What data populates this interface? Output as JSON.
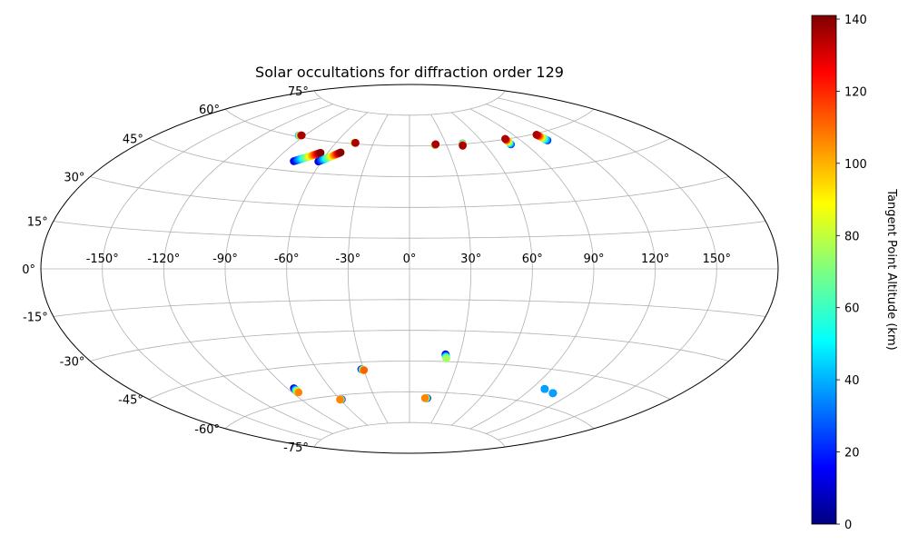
{
  "chart_data": {
    "type": "scatter",
    "projection": "aitoff",
    "title": "Solar occultations for diffraction order 129",
    "xlabel": "",
    "ylabel": "",
    "lon_ticks": [
      -150,
      -120,
      -90,
      -60,
      -30,
      0,
      30,
      60,
      90,
      120,
      150
    ],
    "lon_tick_labels": [
      "-150°",
      "-120°",
      "-90°",
      "-60°",
      "-30°",
      "0°",
      "30°",
      "60°",
      "90°",
      "120°",
      "150°"
    ],
    "lat_ticks": [
      75,
      60,
      45,
      30,
      15,
      0,
      -15,
      -30,
      -45,
      -60,
      -75
    ],
    "lat_tick_labels": [
      "75°",
      "60°",
      "45°",
      "30°",
      "15°",
      "0°",
      "-15°",
      "-30°",
      "-45°",
      "-60°",
      "-75°"
    ],
    "grid": true,
    "colorbar": {
      "label": "Tangent Point Altitude (km)",
      "colormap": "jet",
      "range": [
        0,
        141
      ],
      "ticks": [
        0,
        20,
        40,
        60,
        80,
        100,
        120,
        140
      ],
      "tick_labels": [
        "0",
        "20",
        "40",
        "60",
        "80",
        "100",
        "120",
        "140"
      ],
      "location": "right"
    },
    "occultations": [
      {
        "lon_start": -94.5,
        "lat_start": 60.5,
        "lon_end": -92.5,
        "lat_end": 60.8,
        "alt_start": 40,
        "alt_end": 135
      },
      {
        "lon_start": -78,
        "lat_start": 49.5,
        "lon_end": -65,
        "lat_end": 54.5,
        "alt_start": 10,
        "alt_end": 140
      },
      {
        "lon_start": -62,
        "lat_start": 50.5,
        "lon_end": -51,
        "lat_end": 55.5,
        "alt_start": 10,
        "alt_end": 140
      },
      {
        "lon_start": -45.5,
        "lat_start": 60.5,
        "lon_end": -44.5,
        "lat_end": 60.5,
        "alt_start": 60,
        "alt_end": 135
      },
      {
        "lon_start": 20.5,
        "lat_start": 60.2,
        "lon_end": 21.5,
        "lat_end": 60.6,
        "alt_start": 50,
        "alt_end": 135
      },
      {
        "lon_start": 43.5,
        "lat_start": 60.3,
        "lon_end": 42.5,
        "lat_end": 59.2,
        "alt_start": 40,
        "alt_end": 135
      },
      {
        "lon_start": 79.5,
        "lat_start": 57.5,
        "lon_end": 80,
        "lat_end": 60.2,
        "alt_start": 25,
        "alt_end": 135
      },
      {
        "lon_start": 108.5,
        "lat_start": 56.5,
        "lon_end": 107,
        "lat_end": 59.5,
        "alt_start": 25,
        "alt_end": 135
      },
      {
        "lon_start": 21.5,
        "lat_start": -41.5,
        "lon_end": 22.5,
        "lat_end": -43.5,
        "alt_start": 5,
        "alt_end": 75
      },
      {
        "lon_start": -31.5,
        "lat_start": -48.5,
        "lon_end": -30,
        "lat_end": -49,
        "alt_start": 5,
        "alt_end": 110
      },
      {
        "lon_start": -85.5,
        "lat_start": -54.5,
        "lon_end": -85.5,
        "lat_end": -56.5,
        "alt_start": 5,
        "alt_end": 105
      },
      {
        "lon_start": -58.5,
        "lat_start": -62,
        "lon_end": -60,
        "lat_end": -62,
        "alt_start": 5,
        "alt_end": 105
      },
      {
        "lon_start": 15.5,
        "lat_start": -63,
        "lon_end": 13.5,
        "lat_end": -63,
        "alt_start": 5,
        "alt_end": 105
      },
      {
        "lon_start": 99,
        "lat_start": -53.5,
        "lon_end": 99,
        "lat_end": -53.5,
        "alt_start": 5,
        "alt_end": 40
      },
      {
        "lon_start": 108,
        "lat_start": -54.5,
        "lon_end": 108,
        "lat_end": -54.5,
        "alt_start": 5,
        "alt_end": 40
      }
    ]
  }
}
